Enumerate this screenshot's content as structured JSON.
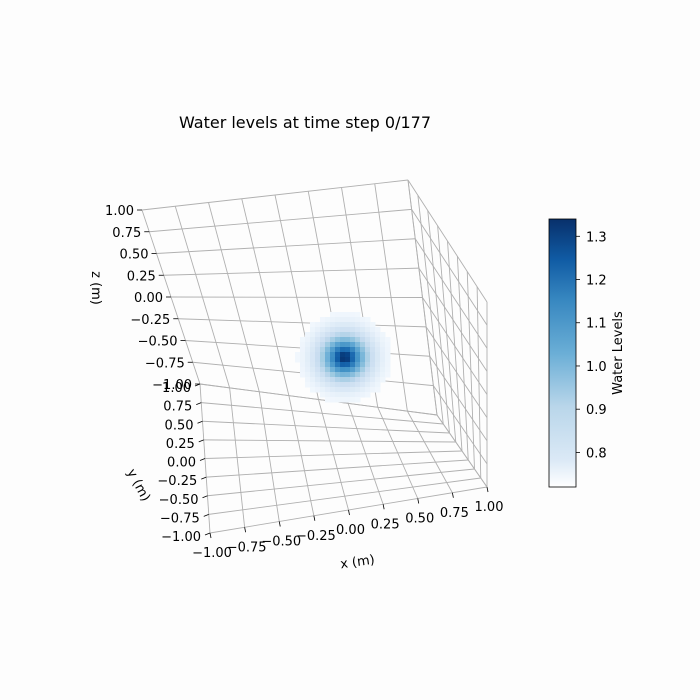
{
  "chart_data": {
    "type": "surface3d",
    "title": "Water levels at time step 0/177",
    "xlabel": "x (m)",
    "ylabel": "y (m)",
    "zlabel": "z (m)",
    "xlim": [
      -1.0,
      1.0
    ],
    "ylim": [
      -1.0,
      1.0
    ],
    "zlim": [
      -1.0,
      1.0
    ],
    "x_ticks": [
      "−1.00",
      "−0.75",
      "−0.50",
      "−0.25",
      "0.00",
      "0.25",
      "0.50",
      "0.75",
      "1.00"
    ],
    "y_ticks": [
      "1.00",
      "0.75",
      "0.50",
      "0.25",
      "0.00",
      "−0.25",
      "−0.50",
      "−0.75",
      "−1.00"
    ],
    "z_ticks": [
      "1.00",
      "0.75",
      "0.50",
      "0.25",
      "0.00",
      "−0.25",
      "−0.50",
      "−0.75",
      "−1.00"
    ],
    "grid": true,
    "colormap": "Blues",
    "colorbar": {
      "label": "Water Levels",
      "range": [
        0.72,
        1.34
      ],
      "ticks": [
        "0.8",
        "0.9",
        "1.0",
        "1.1",
        "1.2",
        "1.3"
      ],
      "tick_values": [
        0.8,
        0.9,
        1.0,
        1.1,
        1.2,
        1.3
      ]
    },
    "water_bump": {
      "peak_level": 1.34,
      "base_level": 0.72,
      "center_x": 0.0,
      "center_y": 0.0
    }
  },
  "colors": {
    "grid": "#b0b0b0",
    "background": "#fdfdfd",
    "colormap_light": "#f7fbff",
    "colormap_dark": "#08306b"
  }
}
